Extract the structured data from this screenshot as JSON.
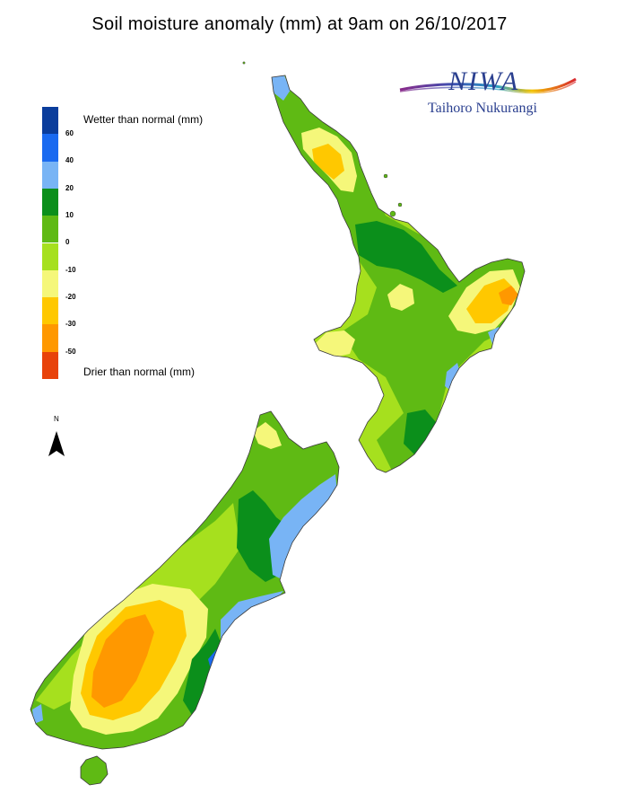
{
  "title": "Soil moisture anomaly (mm) at 9am on 26/10/2017",
  "logo": {
    "brand": "NIWA",
    "tagline": "Taihoro Nukurangi"
  },
  "north_label": "N",
  "legend": {
    "wetter_label": "Wetter than normal (mm)",
    "drier_label": "Drier than normal (mm)",
    "ticks": [
      "60",
      "40",
      "20",
      "10",
      "0",
      "-10",
      "-20",
      "-30",
      "-50"
    ],
    "colors": [
      "#0a3d9c",
      "#1a6af0",
      "#78b4f5",
      "#0b8f1b",
      "#5fba14",
      "#a6e01e",
      "#f5f77a",
      "#ffc800",
      "#ff9800",
      "#e8420a"
    ]
  },
  "colors": {
    "coast": "#3a3a3a",
    "wet_60_plus": "#0a3d9c",
    "wet_40_60": "#1a6af0",
    "wet_20_40": "#78b4f5",
    "wet_10_20": "#0b8f1b",
    "wet_0_10": "#5fba14",
    "dry_0_10": "#a6e01e",
    "dry_10_20": "#f5f77a",
    "dry_20_30": "#ffc800",
    "dry_30_50": "#ff9800"
  }
}
